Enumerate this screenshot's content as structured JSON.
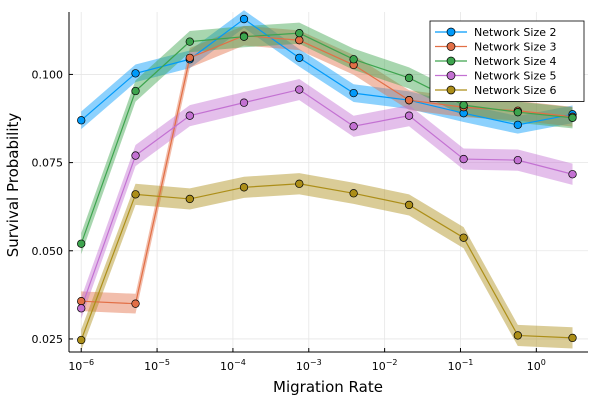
{
  "chart_data": {
    "type": "line",
    "title": "",
    "xlabel": "Migration Rate",
    "ylabel": "Survival Probability",
    "x_scale": "log10",
    "xlim": [
      6.9e-07,
      4.8
    ],
    "ylim": [
      0.0213,
      0.1177
    ],
    "grid": true,
    "legend_position": "top-right",
    "x_ticks": [
      {
        "value": 1e-06,
        "label": "10",
        "exp": "−6"
      },
      {
        "value": 1e-05,
        "label": "10",
        "exp": "−5"
      },
      {
        "value": 0.0001,
        "label": "10",
        "exp": "−4"
      },
      {
        "value": 0.001,
        "label": "10",
        "exp": "−3"
      },
      {
        "value": 0.01,
        "label": "10",
        "exp": "−2"
      },
      {
        "value": 0.1,
        "label": "10",
        "exp": "−1"
      },
      {
        "value": 1,
        "label": "10",
        "exp": "0"
      }
    ],
    "y_ticks": [
      {
        "value": 0.025,
        "label": "0.025"
      },
      {
        "value": 0.05,
        "label": "0.050"
      },
      {
        "value": 0.075,
        "label": "0.075"
      },
      {
        "value": 0.1,
        "label": "0.100"
      }
    ],
    "x": [
      1e-06,
      5.2e-06,
      2.7e-05,
      0.00014,
      0.00075,
      0.0039,
      0.021,
      0.11,
      0.57,
      3.0
    ],
    "series": [
      {
        "name": "Network Size 2",
        "color": "#009AFA",
        "band": 0.0025,
        "values": [
          0.087,
          0.1003,
          0.1043,
          0.1157,
          0.1047,
          0.0947,
          0.0927,
          0.089,
          0.0857,
          0.0887
        ]
      },
      {
        "name": "Network Size 3",
        "color": "#E26F46",
        "band": 0.0028,
        "values": [
          0.0357,
          0.035,
          0.1047,
          0.111,
          0.1097,
          0.1027,
          0.0927,
          0.0907,
          0.0897,
          0.088
        ]
      },
      {
        "name": "Network Size 4",
        "color": "#3DA44E",
        "band": 0.003,
        "values": [
          0.052,
          0.0953,
          0.1093,
          0.1107,
          0.1117,
          0.1043,
          0.099,
          0.0913,
          0.0893,
          0.0877
        ]
      },
      {
        "name": "Network Size 5",
        "color": "#C371D2",
        "band": 0.003,
        "values": [
          0.0337,
          0.077,
          0.0883,
          0.092,
          0.0957,
          0.0853,
          0.0883,
          0.076,
          0.0757,
          0.0717
        ]
      },
      {
        "name": "Network Size 6",
        "color": "#AC8E18",
        "band": 0.003,
        "values": [
          0.0247,
          0.066,
          0.0647,
          0.068,
          0.069,
          0.0663,
          0.063,
          0.0537,
          0.026,
          0.0253
        ]
      }
    ]
  }
}
